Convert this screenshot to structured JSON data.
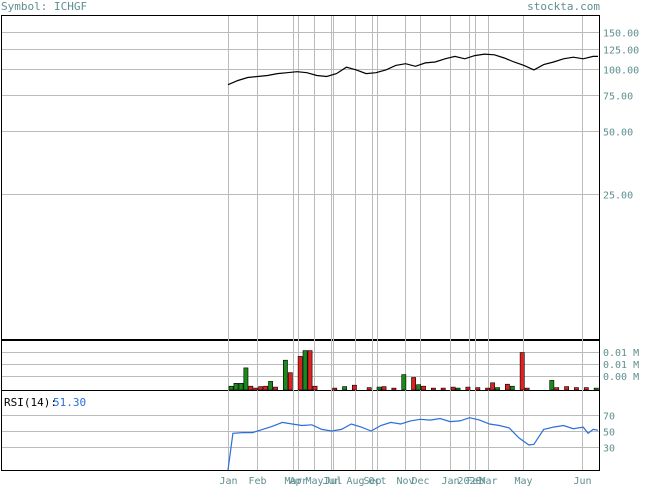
{
  "header": {
    "symbol_label": "Symbol: ICHGF",
    "site": "stockta.com"
  },
  "colors": {
    "axis_text": "#5f8f8f",
    "grid": "#bbbbbb",
    "price_line": "#000000",
    "volume_up": "#1a8a1a",
    "volume_down": "#dd2222",
    "rsi_line": "#2a6edb",
    "rsi_value": "#2a6edb"
  },
  "chart_data": [
    {
      "type": "line",
      "name": "price",
      "y_scale": "log",
      "y_ticks": [
        "150.00",
        "125.00",
        "100.00",
        "75.00",
        "50.00",
        "25.00"
      ],
      "y_tick_values": [
        150,
        125,
        100,
        75,
        50,
        25
      ],
      "ylim": [
        5,
        180
      ],
      "x_range": [
        0,
        75
      ],
      "x_tick_labels": [
        "Jan",
        "Feb",
        "Mar",
        "Apr",
        "May",
        "Jun",
        "Jul",
        "Aug",
        "Sep",
        "Oct",
        "Nov",
        "Dec",
        "Jan",
        "2020",
        "Feb",
        "Mar",
        "May",
        "Jun"
      ],
      "x_tick_positions": [
        0,
        5.8,
        13.2,
        14.2,
        17.5,
        20.8,
        21.3,
        25.8,
        29.2,
        30.2,
        35.8,
        39.0,
        45.0,
        48.8,
        50.0,
        52.8,
        59.8,
        71.8
      ],
      "values": [
        [
          0,
          84
        ],
        [
          2,
          88
        ],
        [
          4,
          91
        ],
        [
          6,
          92
        ],
        [
          8,
          93
        ],
        [
          10,
          95
        ],
        [
          12,
          96
        ],
        [
          14,
          97
        ],
        [
          16,
          96
        ],
        [
          18,
          93
        ],
        [
          20,
          92
        ],
        [
          22,
          95
        ],
        [
          24,
          102
        ],
        [
          26,
          99
        ],
        [
          28,
          95
        ],
        [
          30,
          96
        ],
        [
          32,
          99
        ],
        [
          34,
          104
        ],
        [
          36,
          106
        ],
        [
          38,
          103
        ],
        [
          40,
          107
        ],
        [
          42,
          108
        ],
        [
          44,
          112
        ],
        [
          46,
          115
        ],
        [
          48,
          112
        ],
        [
          50,
          116
        ],
        [
          52,
          118
        ],
        [
          54,
          117
        ],
        [
          56,
          113
        ],
        [
          58,
          108
        ],
        [
          60,
          104
        ],
        [
          62,
          99
        ],
        [
          64,
          105
        ],
        [
          66,
          108
        ],
        [
          68,
          112
        ],
        [
          70,
          114
        ],
        [
          72,
          112
        ],
        [
          74,
          115
        ],
        [
          75,
          115
        ]
      ]
    },
    {
      "type": "bar",
      "name": "volume",
      "y_ticks": [
        "0.01 M",
        "0.01 M",
        "0.00 M"
      ],
      "ylim": [
        0,
        1
      ],
      "bars": [
        {
          "x": 0,
          "v": 0.08,
          "up": true
        },
        {
          "x": 1,
          "v": 0.14,
          "up": true
        },
        {
          "x": 2,
          "v": 0.14,
          "up": true
        },
        {
          "x": 3,
          "v": 0.46,
          "up": true
        },
        {
          "x": 4,
          "v": 0.08,
          "up": false
        },
        {
          "x": 5,
          "v": 0.04,
          "up": false
        },
        {
          "x": 6,
          "v": 0.07,
          "up": false
        },
        {
          "x": 7,
          "v": 0.08,
          "up": false
        },
        {
          "x": 8,
          "v": 0.18,
          "up": true
        },
        {
          "x": 9,
          "v": 0.06,
          "up": false
        },
        {
          "x": 11,
          "v": 0.62,
          "up": true
        },
        {
          "x": 12,
          "v": 0.36,
          "up": false
        },
        {
          "x": 14,
          "v": 0.7,
          "up": false
        },
        {
          "x": 15,
          "v": 0.82,
          "up": true
        },
        {
          "x": 16,
          "v": 0.82,
          "up": false
        },
        {
          "x": 17,
          "v": 0.08,
          "up": false
        },
        {
          "x": 21,
          "v": 0.04,
          "up": false
        },
        {
          "x": 23,
          "v": 0.07,
          "up": true
        },
        {
          "x": 25,
          "v": 0.1,
          "up": false
        },
        {
          "x": 28,
          "v": 0.05,
          "up": false
        },
        {
          "x": 30,
          "v": 0.06,
          "up": true
        },
        {
          "x": 31,
          "v": 0.07,
          "up": false
        },
        {
          "x": 33,
          "v": 0.04,
          "up": false
        },
        {
          "x": 35,
          "v": 0.32,
          "up": true
        },
        {
          "x": 37,
          "v": 0.26,
          "up": false
        },
        {
          "x": 38,
          "v": 0.11,
          "up": true
        },
        {
          "x": 39,
          "v": 0.08,
          "up": false
        },
        {
          "x": 41,
          "v": 0.04,
          "up": false
        },
        {
          "x": 43,
          "v": 0.04,
          "up": false
        },
        {
          "x": 45,
          "v": 0.06,
          "up": false
        },
        {
          "x": 46,
          "v": 0.04,
          "up": true
        },
        {
          "x": 48,
          "v": 0.06,
          "up": false
        },
        {
          "x": 50,
          "v": 0.05,
          "up": false
        },
        {
          "x": 52,
          "v": 0.04,
          "up": false
        },
        {
          "x": 53,
          "v": 0.15,
          "up": false
        },
        {
          "x": 54,
          "v": 0.05,
          "up": true
        },
        {
          "x": 56,
          "v": 0.12,
          "up": false
        },
        {
          "x": 57,
          "v": 0.08,
          "up": true
        },
        {
          "x": 59,
          "v": 0.78,
          "up": false
        },
        {
          "x": 60,
          "v": 0.04,
          "up": false
        },
        {
          "x": 65,
          "v": 0.2,
          "up": true
        },
        {
          "x": 66,
          "v": 0.05,
          "up": false
        },
        {
          "x": 68,
          "v": 0.07,
          "up": false
        },
        {
          "x": 70,
          "v": 0.05,
          "up": false
        },
        {
          "x": 72,
          "v": 0.05,
          "up": false
        },
        {
          "x": 74,
          "v": 0.04,
          "up": true
        }
      ]
    },
    {
      "type": "line",
      "name": "rsi",
      "label": "RSI(14):",
      "current_value": "51.30",
      "y_ticks": [
        "70",
        "50",
        "30"
      ],
      "y_tick_values": [
        70,
        50,
        30
      ],
      "ylim": [
        0,
        100
      ],
      "values": [
        [
          0,
          0
        ],
        [
          1,
          47
        ],
        [
          3,
          48
        ],
        [
          5,
          48
        ],
        [
          7,
          52
        ],
        [
          9,
          56
        ],
        [
          11,
          61
        ],
        [
          13,
          59
        ],
        [
          15,
          57
        ],
        [
          17,
          58
        ],
        [
          19,
          52
        ],
        [
          21,
          50
        ],
        [
          23,
          52
        ],
        [
          25,
          59
        ],
        [
          27,
          55
        ],
        [
          29,
          50
        ],
        [
          31,
          57
        ],
        [
          33,
          61
        ],
        [
          35,
          59
        ],
        [
          37,
          63
        ],
        [
          39,
          65
        ],
        [
          41,
          64
        ],
        [
          43,
          66
        ],
        [
          45,
          62
        ],
        [
          47,
          63
        ],
        [
          49,
          67
        ],
        [
          51,
          64
        ],
        [
          53,
          59
        ],
        [
          55,
          57
        ],
        [
          57,
          54
        ],
        [
          59,
          41
        ],
        [
          61,
          32
        ],
        [
          62,
          33
        ],
        [
          64,
          52
        ],
        [
          66,
          55
        ],
        [
          68,
          57
        ],
        [
          70,
          53
        ],
        [
          72,
          55
        ],
        [
          73,
          47
        ],
        [
          74,
          52
        ],
        [
          75,
          51
        ]
      ]
    }
  ]
}
